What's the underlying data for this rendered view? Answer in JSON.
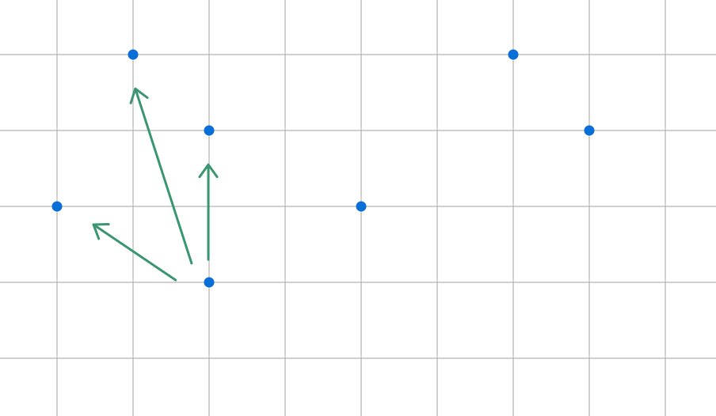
{
  "colors": {
    "background": "#ffffff",
    "grid": "#b4b4b4",
    "point": "#0a6fd8",
    "arrow": "#3a9670"
  },
  "grid": {
    "cell_units": 1,
    "columns": [
      0,
      1,
      2,
      3,
      4,
      5,
      6,
      7,
      8
    ],
    "rows": [
      0,
      1,
      2,
      3,
      4
    ]
  },
  "points": [
    {
      "x": 1,
      "y": 0
    },
    {
      "x": 6,
      "y": 0
    },
    {
      "x": 2,
      "y": 1
    },
    {
      "x": 7,
      "y": 1
    },
    {
      "x": 0,
      "y": 2
    },
    {
      "x": 4,
      "y": 2
    },
    {
      "x": 2,
      "y": 3
    }
  ],
  "arrows": [
    {
      "from": [
        1.77,
        2.75
      ],
      "to": [
        1.03,
        0.45
      ]
    },
    {
      "from": [
        1.99,
        2.7
      ],
      "to": [
        1.99,
        1.45
      ]
    },
    {
      "from": [
        1.56,
        2.97
      ],
      "to": [
        0.48,
        2.24
      ]
    }
  ]
}
